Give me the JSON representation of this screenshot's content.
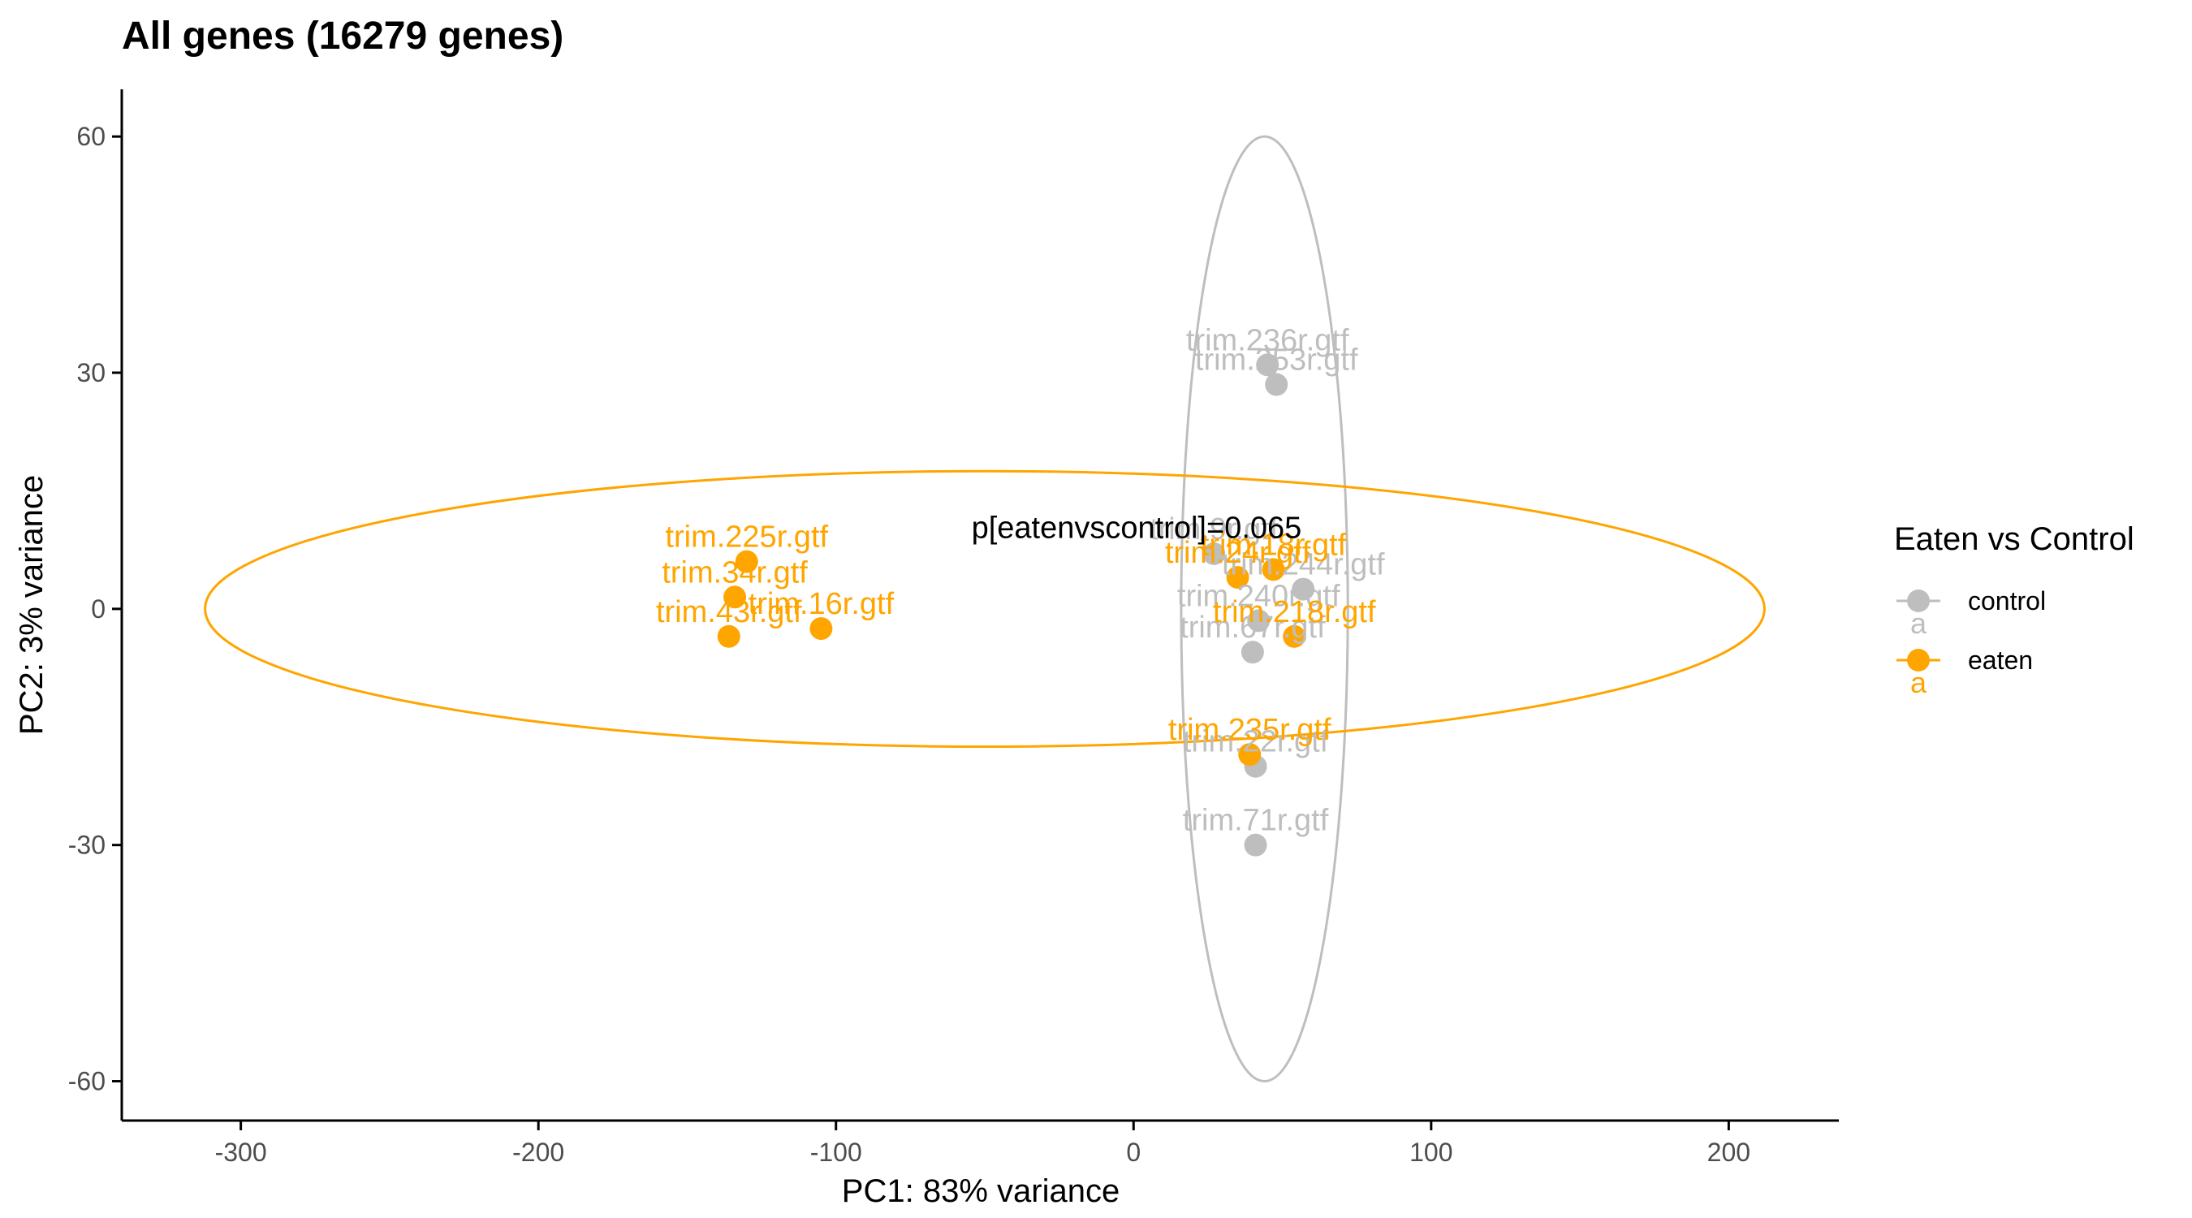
{
  "chart_data": {
    "type": "scatter",
    "title": "All genes (16279 genes)",
    "xlabel": "PC1: 83% variance",
    "ylabel": "PC2: 3% variance",
    "xlim": [
      -340,
      237
    ],
    "ylim": [
      -65,
      66
    ],
    "xticks": [
      -300,
      -200,
      -100,
      0,
      100,
      200
    ],
    "yticks": [
      -60,
      -30,
      0,
      30,
      60
    ],
    "grid": false,
    "legend": {
      "title": "Eaten vs Control",
      "position": "right",
      "entries": [
        {
          "key": "control",
          "label": "control",
          "color": "#BEBEBE",
          "letter": "a"
        },
        {
          "key": "eaten",
          "label": "eaten",
          "color": "#FFA500",
          "letter": "a"
        }
      ]
    },
    "annotation": {
      "text": "p[eatenvscontrol]=0.065",
      "x": 1,
      "y": 9
    },
    "series": [
      {
        "name": "control",
        "color": "#BEBEBE",
        "points": [
          {
            "label": "trim.236r.gtf",
            "x": 45,
            "y": 31
          },
          {
            "label": "trim.253r.gtf",
            "x": 48,
            "y": 28.5
          },
          {
            "label": "trim.244r.gtf",
            "x": 57,
            "y": 2.5
          },
          {
            "label": "trim.67r.gtf",
            "x": 40,
            "y": -5.5
          },
          {
            "label": "trim.240r.gtf",
            "x": 42,
            "y": -1.5
          },
          {
            "label": "trim.22r.gtf",
            "x": 41,
            "y": -20
          },
          {
            "label": "trim.71r.gtf",
            "x": 41,
            "y": -30
          },
          {
            "label": "trim.9r.gtf",
            "x": 27,
            "y": 7
          }
        ]
      },
      {
        "name": "eaten",
        "color": "#FFA500",
        "points": [
          {
            "label": "trim.225r.gtf",
            "x": -130,
            "y": 6
          },
          {
            "label": "trim.34r.gtf",
            "x": -134,
            "y": 1.5
          },
          {
            "label": "trim.43r.gtf",
            "x": -136,
            "y": -3.5
          },
          {
            "label": "trim.16r.gtf",
            "x": -105,
            "y": -2.5
          },
          {
            "label": "trim.24r.gtf",
            "x": 35,
            "y": 4
          },
          {
            "label": "trim.18r.gtf",
            "x": 47,
            "y": 5
          },
          {
            "label": "trim.218r.gtf",
            "x": 54,
            "y": -3.5
          },
          {
            "label": "trim.235r.gtf",
            "x": 39,
            "y": -18.5
          }
        ]
      }
    ],
    "ellipses": [
      {
        "series": "control",
        "color": "#BEBEBE",
        "cx": 44,
        "cy": 0,
        "rx": 28,
        "ry": 60
      },
      {
        "series": "eaten",
        "color": "#FFA500",
        "cx": -50,
        "cy": 0,
        "rx": 262,
        "ry": 17.5
      }
    ]
  }
}
